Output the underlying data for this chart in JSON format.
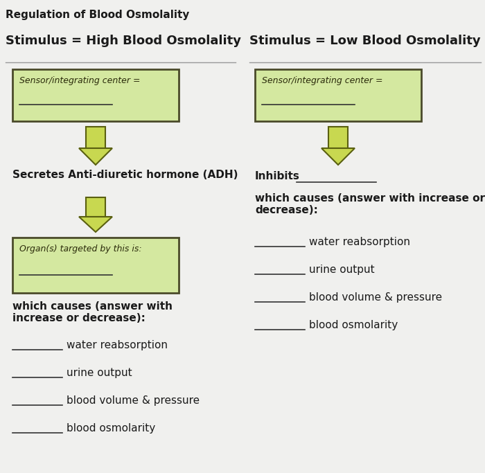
{
  "title": "Regulation of Blood Osmolality",
  "bg_color": "#f0f0ee",
  "box_fill": "#d4e8a0",
  "box_edge": "#4a4a2a",
  "text_color": "#1a1a1a",
  "left_stimulus": "Stimulus = High Blood Osmolality",
  "right_stimulus": "Stimulus = Low Blood Osmolality",
  "left_box1_text": "Sensor/integrating center =",
  "right_box1_text": "Sensor/integrating center =",
  "left_secretes": "Secretes Anti-diuretic hormone (ADH)",
  "left_box2_text": "Organ(s) targeted by this is:",
  "left_causes": "which causes (answer with\nincrease or decrease):",
  "left_items": [
    "water reabsorption",
    "urine output",
    "blood volume & pressure",
    "blood osmolarity"
  ],
  "right_inhibits": "Inhibits",
  "right_causes": "which causes (answer with increase or\ndecrease):",
  "right_items": [
    "water reabsorption",
    "urine output",
    "blood volume & pressure",
    "blood osmolarity"
  ],
  "arrow_color": "#c8d850",
  "arrow_edge": "#5a6010",
  "line_color": "#999999",
  "figw": 7.0,
  "figh": 6.83
}
